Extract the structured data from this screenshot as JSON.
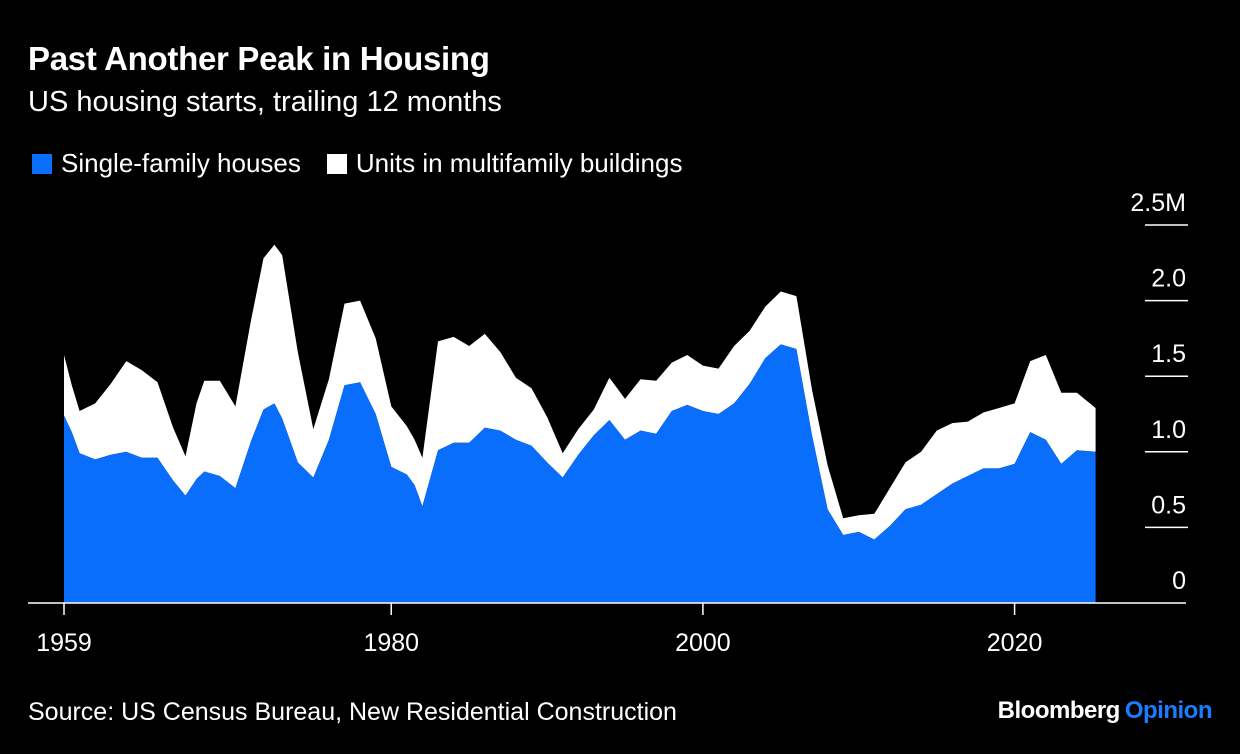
{
  "chart_data": {
    "type": "area",
    "stacked": true,
    "title": "Past Another Peak in Housing",
    "subtitle": "US housing starts, trailing 12 months",
    "source": "Source: US Census Bureau, New Residential Construction",
    "ylim": [
      0,
      2.5
    ],
    "y_ticks": [
      {
        "value": 0,
        "label": "0"
      },
      {
        "value": 0.5,
        "label": "0.5"
      },
      {
        "value": 1.0,
        "label": "1.0"
      },
      {
        "value": 1.5,
        "label": "1.5"
      },
      {
        "value": 2.0,
        "label": "2.0"
      },
      {
        "value": 2.5,
        "label": "2.5M"
      }
    ],
    "xlim": [
      1959,
      2031
    ],
    "x_ticks": [
      {
        "value": 1959,
        "label": "1959"
      },
      {
        "value": 1980,
        "label": "1980"
      },
      {
        "value": 2000,
        "label": "2000"
      },
      {
        "value": 2020,
        "label": "2020"
      }
    ],
    "x": [
      1959,
      1959.5,
      1960,
      1961,
      1962,
      1963,
      1964,
      1965,
      1966,
      1966.8,
      1967.5,
      1968,
      1969,
      1970,
      1971,
      1971.8,
      1972.5,
      1973,
      1974,
      1975,
      1976,
      1977,
      1978,
      1979,
      1980,
      1981,
      1981.5,
      1982,
      1983,
      1984,
      1985,
      1986,
      1987,
      1988,
      1989,
      1990,
      1991,
      1992,
      1993,
      1994,
      1995,
      1996,
      1997,
      1998,
      1999,
      2000,
      2001,
      2002,
      2003,
      2004,
      2005,
      2006,
      2007,
      2008,
      2009,
      2010,
      2011,
      2012,
      2013,
      2014,
      2015,
      2016,
      2017,
      2018,
      2019,
      2020,
      2021,
      2022,
      2023,
      2024,
      2025.2
    ],
    "series": [
      {
        "name": "Single-family houses",
        "color": "#0a6efd",
        "values": [
          1.24,
          1.13,
          0.99,
          0.95,
          0.98,
          1.0,
          0.96,
          0.96,
          0.81,
          0.71,
          0.82,
          0.87,
          0.84,
          0.76,
          1.07,
          1.28,
          1.32,
          1.22,
          0.93,
          0.83,
          1.08,
          1.44,
          1.46,
          1.25,
          0.9,
          0.85,
          0.78,
          0.64,
          1.01,
          1.06,
          1.06,
          1.16,
          1.14,
          1.08,
          1.04,
          0.93,
          0.83,
          0.98,
          1.11,
          1.21,
          1.08,
          1.14,
          1.12,
          1.27,
          1.31,
          1.27,
          1.25,
          1.32,
          1.45,
          1.62,
          1.71,
          1.68,
          1.11,
          0.62,
          0.45,
          0.47,
          0.42,
          0.51,
          0.62,
          0.65,
          0.72,
          0.79,
          0.84,
          0.89,
          0.89,
          0.92,
          1.13,
          1.08,
          0.92,
          1.01,
          1.0
        ]
      },
      {
        "name": "Units in multifamily buildings",
        "color": "#ffffff",
        "values": [
          0.4,
          0.31,
          0.28,
          0.37,
          0.47,
          0.6,
          0.58,
          0.5,
          0.35,
          0.26,
          0.5,
          0.6,
          0.63,
          0.54,
          0.8,
          1.0,
          1.05,
          1.08,
          0.73,
          0.32,
          0.4,
          0.54,
          0.54,
          0.5,
          0.4,
          0.32,
          0.3,
          0.32,
          0.72,
          0.7,
          0.64,
          0.62,
          0.52,
          0.41,
          0.38,
          0.3,
          0.16,
          0.17,
          0.17,
          0.28,
          0.27,
          0.34,
          0.35,
          0.32,
          0.33,
          0.3,
          0.3,
          0.38,
          0.35,
          0.34,
          0.35,
          0.35,
          0.3,
          0.29,
          0.11,
          0.11,
          0.17,
          0.25,
          0.31,
          0.35,
          0.42,
          0.4,
          0.36,
          0.37,
          0.4,
          0.4,
          0.47,
          0.56,
          0.47,
          0.38,
          0.29
        ]
      }
    ]
  },
  "legend": {
    "single_family": "Single-family houses",
    "multifamily": "Units in multifamily buildings"
  },
  "brand": {
    "name": "Bloomberg",
    "section": "Opinion"
  },
  "colors": {
    "background": "#000000",
    "single_family": "#0a6efd",
    "multifamily": "#ffffff",
    "brand_accent": "#1a7dff"
  }
}
